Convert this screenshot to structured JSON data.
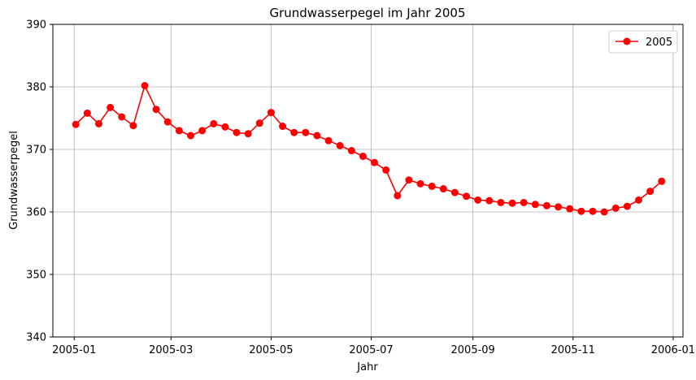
{
  "chart_data": {
    "type": "line",
    "title": "Grundwasserpegel im Jahr 2005",
    "xlabel": "Jahr",
    "ylabel": "Grundwasserpegel",
    "ylim": [
      340,
      390
    ],
    "xlim": [
      "2004-12-19",
      "2006-01-07"
    ],
    "yticks": [
      340,
      350,
      360,
      370,
      380,
      390
    ],
    "xticks": [
      "2005-01",
      "2005-03",
      "2005-05",
      "2005-07",
      "2005-09",
      "2005-11",
      "2006-01"
    ],
    "grid": true,
    "legend_position": "top-right",
    "series": [
      {
        "name": "2005",
        "color": "#ff0000",
        "marker": "circle",
        "x": [
          "2005-01-02",
          "2005-01-09",
          "2005-01-16",
          "2005-01-23",
          "2005-01-30",
          "2005-02-06",
          "2005-02-13",
          "2005-02-20",
          "2005-02-27",
          "2005-03-06",
          "2005-03-13",
          "2005-03-20",
          "2005-03-27",
          "2005-04-03",
          "2005-04-10",
          "2005-04-17",
          "2005-04-24",
          "2005-05-01",
          "2005-05-08",
          "2005-05-15",
          "2005-05-22",
          "2005-05-29",
          "2005-06-05",
          "2005-06-12",
          "2005-06-19",
          "2005-06-26",
          "2005-07-03",
          "2005-07-10",
          "2005-07-17",
          "2005-07-24",
          "2005-07-31",
          "2005-08-07",
          "2005-08-14",
          "2005-08-21",
          "2005-08-28",
          "2005-09-04",
          "2005-09-11",
          "2005-09-18",
          "2005-09-25",
          "2005-10-02",
          "2005-10-09",
          "2005-10-16",
          "2005-10-23",
          "2005-10-30",
          "2005-11-06",
          "2005-11-13",
          "2005-11-20",
          "2005-11-27",
          "2005-12-04",
          "2005-12-11",
          "2005-12-18",
          "2005-12-25"
        ],
        "values": [
          374.0,
          375.8,
          374.1,
          376.7,
          375.2,
          373.8,
          380.2,
          376.4,
          374.4,
          373.0,
          372.2,
          373.0,
          374.1,
          373.6,
          372.7,
          372.5,
          374.2,
          375.9,
          373.7,
          372.7,
          372.7,
          372.2,
          371.4,
          370.6,
          369.8,
          368.9,
          367.9,
          366.7,
          362.6,
          365.1,
          364.5,
          364.1,
          363.7,
          363.1,
          362.5,
          361.9,
          361.8,
          361.5,
          361.4,
          361.5,
          361.2,
          361.0,
          360.8,
          360.5,
          360.1,
          360.1,
          360.0,
          360.6,
          360.9,
          361.9,
          363.3,
          364.9
        ]
      }
    ]
  }
}
